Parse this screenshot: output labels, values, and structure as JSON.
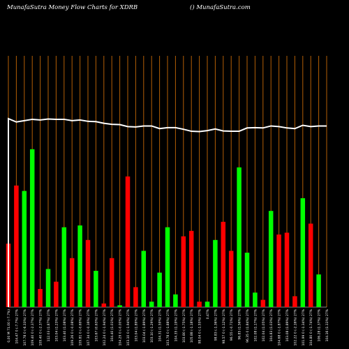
{
  "header": {
    "title": "MunafaSutra  Money Flow  Charts for XDRB",
    "site": "() MunafaSutra.com"
  },
  "colors": {
    "background": "#000000",
    "grid": "#b45f06",
    "up": "#00ff00",
    "down": "#ff0000",
    "line": "#ffffff",
    "label": "#ffffff"
  },
  "chart_data": {
    "type": "bar",
    "title": "MunafaSutra  Money Flow  Charts for XDRB",
    "grid": "vertical",
    "categories": [
      "0,00 M 71.00 (-7.7%)",
      "104.47 0 (-7.7%) 27%",
      "107.78 0 (-6.33%) 27%",
      "109.40 0 (-2.37%) 27%",
      "109.40 0 (-2.37%) 27%",
      "112.03 (1.87%) 27%",
      "103.04 (1.23%) 27%",
      "103.40 (1.08%) 27%",
      "109.26 0 (-0.08%) 27%",
      "109.81 0 (-0.69%) 27%",
      "107.34 0 (-0.16%) 27%",
      "103.67 (0.63%) 27%",
      "102.24 0 (-1.94%) 27%",
      "104.40 (1.01%) 27%",
      "104.29 0 (-0.00%) 27%",
      "103.10 0 (-1.94%) 27%",
      "103.04 (1.89%) 27%",
      "103.04 (-1.89%) 27%",
      "103.10 (-1.29%) 27%",
      "104.31 (1.59%) 27%",
      "103.78 0 (-1.88%) 27%",
      "104.35 (1.19%) 27%",
      "103.80 (-1.75%) 27%",
      "105.88 (-1.18%) 27%",
      "98.04 0 (-1.55%) 27%",
      "0.47%",
      "98.83 (-1.36%) 27%",
      "98.57 0 (-1.12%) 27%",
      "96.55 (-0.71%) 27%",
      "96.85 (1.56%) 27%",
      "96.35 0 (1.84%) 27%",
      "102.08 (1.17%) 27%",
      "102.04 (1.05%) 27%",
      "104.83 (1.03%) 27%",
      "104.68 0 (-1.87%) 27%",
      "103.08 (1.89%) 27%",
      "102.22 0 (-2.16%) 27%",
      "101.99 0 (-1.34%) 27%",
      "104.80 0 (-1.74%) 27%",
      "106.28 (1.37%) 27%",
      "104.16 (1.11%) 27%"
    ],
    "values": [
      35,
      67,
      64,
      87,
      10,
      21,
      14,
      44,
      27,
      45,
      37,
      20,
      2,
      27,
      1,
      72,
      11,
      31,
      3,
      19,
      44,
      7,
      39,
      42,
      3,
      3,
      37,
      47,
      31,
      77,
      30,
      8,
      4,
      53,
      40,
      41,
      6,
      60,
      46,
      18,
      0
    ],
    "directions": [
      "down",
      "down",
      "up",
      "up",
      "down",
      "up",
      "down",
      "up",
      "down",
      "up",
      "down",
      "up",
      "down",
      "down",
      "up",
      "down",
      "down",
      "up",
      "up",
      "up",
      "up",
      "up",
      "down",
      "down",
      "down",
      "up",
      "up",
      "down",
      "down",
      "up",
      "up",
      "up",
      "down",
      "up",
      "down",
      "down",
      "down",
      "up",
      "down",
      "up",
      "up"
    ],
    "price_line": [
      100,
      95,
      97,
      99,
      98,
      99.5,
      99,
      99,
      97,
      98,
      96,
      95.5,
      93,
      91.5,
      91,
      88,
      87.5,
      89,
      89,
      85,
      86.5,
      86.5,
      84,
      81,
      80.5,
      82,
      84.5,
      81.5,
      81,
      81,
      86,
      86.5,
      86,
      89,
      88,
      86,
      85,
      90,
      88,
      89,
      89
    ],
    "ylim": [
      0,
      100
    ]
  }
}
